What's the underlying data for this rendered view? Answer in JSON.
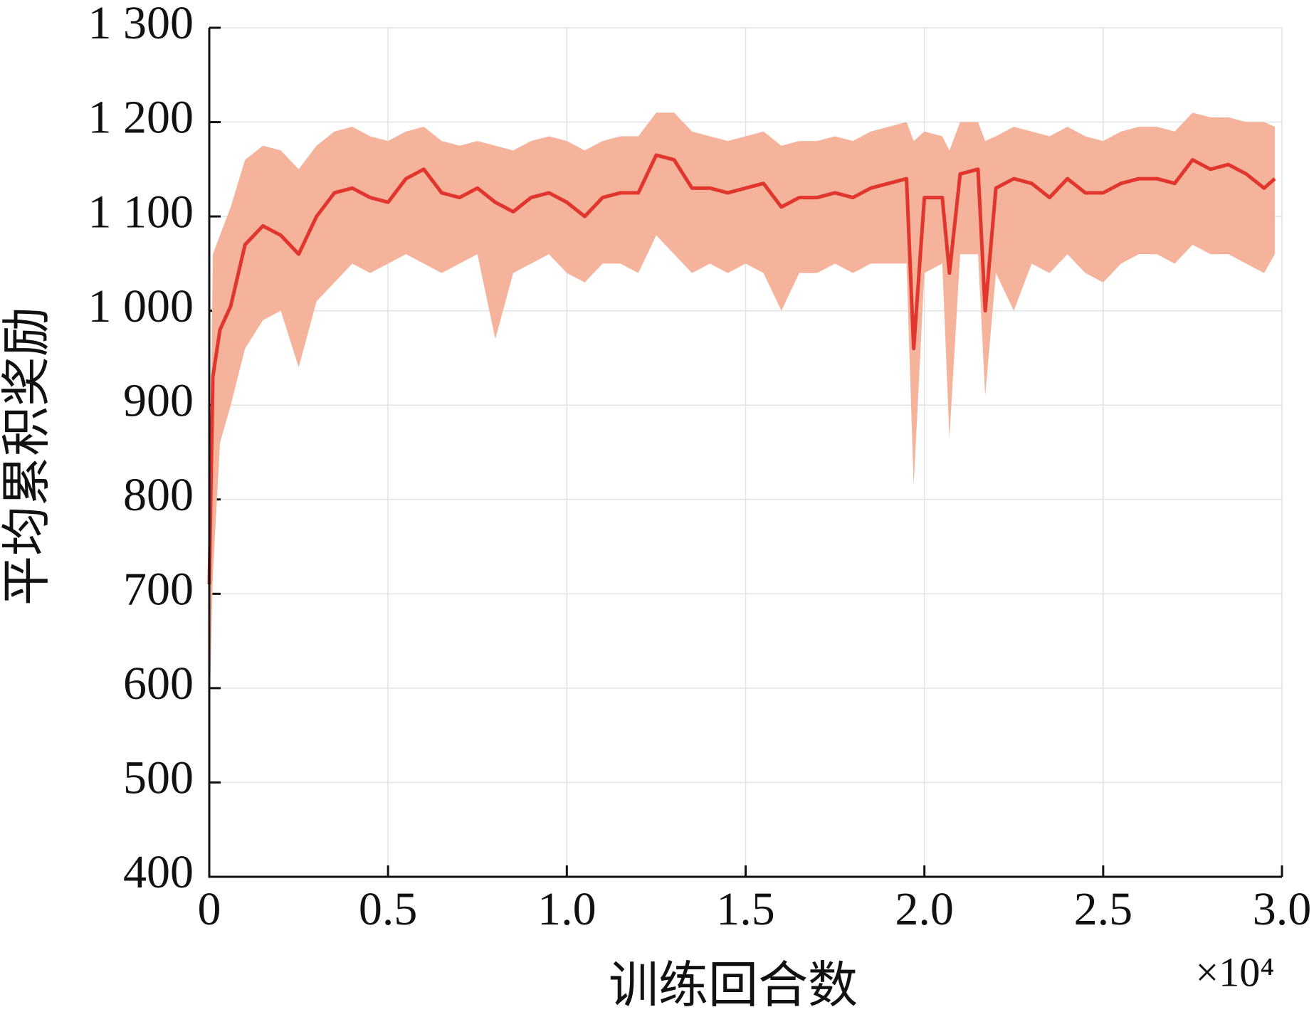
{
  "chart_data": {
    "type": "line",
    "xlabel": "训练回合数",
    "ylabel": "平均累积奖励",
    "x_multiplier": "×10⁴",
    "x": [
      0,
      0.01,
      0.03,
      0.06,
      0.1,
      0.15,
      0.2,
      0.25,
      0.3,
      0.35,
      0.4,
      0.45,
      0.5,
      0.55,
      0.6,
      0.65,
      0.7,
      0.75,
      0.8,
      0.85,
      0.9,
      0.95,
      1.0,
      1.05,
      1.1,
      1.15,
      1.2,
      1.25,
      1.3,
      1.35,
      1.4,
      1.45,
      1.5,
      1.55,
      1.6,
      1.65,
      1.7,
      1.75,
      1.8,
      1.85,
      1.9,
      1.95,
      1.97,
      2.0,
      2.05,
      2.07,
      2.1,
      2.15,
      2.17,
      2.2,
      2.25,
      2.3,
      2.35,
      2.4,
      2.45,
      2.5,
      2.55,
      2.6,
      2.65,
      2.7,
      2.75,
      2.8,
      2.85,
      2.9,
      2.95,
      2.98
    ],
    "series": [
      {
        "color": "#e1362e",
        "band_color": "#f6b39b",
        "values": [
          710,
          930,
          980,
          1005,
          1070,
          1090,
          1080,
          1060,
          1100,
          1125,
          1130,
          1120,
          1115,
          1140,
          1150,
          1125,
          1120,
          1130,
          1115,
          1105,
          1120,
          1125,
          1115,
          1100,
          1120,
          1125,
          1125,
          1165,
          1160,
          1130,
          1130,
          1125,
          1130,
          1135,
          1110,
          1120,
          1120,
          1125,
          1120,
          1130,
          1135,
          1140,
          960,
          1120,
          1120,
          1040,
          1145,
          1150,
          1000,
          1130,
          1140,
          1135,
          1120,
          1140,
          1125,
          1125,
          1135,
          1140,
          1140,
          1135,
          1160,
          1150,
          1155,
          1145,
          1130,
          1140
        ],
        "upper": [
          760,
          1060,
          1080,
          1110,
          1160,
          1175,
          1170,
          1150,
          1175,
          1190,
          1195,
          1185,
          1180,
          1190,
          1195,
          1180,
          1175,
          1180,
          1175,
          1170,
          1180,
          1185,
          1180,
          1170,
          1180,
          1185,
          1185,
          1210,
          1210,
          1190,
          1185,
          1180,
          1185,
          1190,
          1175,
          1180,
          1180,
          1185,
          1180,
          1190,
          1195,
          1200,
          1180,
          1190,
          1185,
          1170,
          1200,
          1200,
          1180,
          1185,
          1195,
          1190,
          1185,
          1195,
          1185,
          1180,
          1190,
          1195,
          1195,
          1190,
          1210,
          1205,
          1205,
          1200,
          1200,
          1195
        ],
        "lower": [
          560,
          720,
          860,
          900,
          960,
          990,
          1000,
          940,
          1010,
          1030,
          1050,
          1040,
          1050,
          1060,
          1050,
          1040,
          1050,
          1060,
          970,
          1040,
          1050,
          1060,
          1040,
          1030,
          1050,
          1050,
          1040,
          1080,
          1060,
          1040,
          1050,
          1040,
          1050,
          1040,
          1000,
          1040,
          1040,
          1050,
          1040,
          1050,
          1050,
          1050,
          815,
          1040,
          1050,
          865,
          1060,
          1060,
          910,
          1040,
          1000,
          1050,
          1040,
          1060,
          1040,
          1030,
          1050,
          1060,
          1060,
          1050,
          1070,
          1060,
          1060,
          1050,
          1040,
          1060
        ]
      }
    ],
    "xlim": [
      0,
      3
    ],
    "ylim": [
      400,
      1300
    ],
    "xticks": [
      0,
      0.5,
      {
        "value": 1,
        "label": "1.0"
      },
      1.5,
      {
        "value": 2,
        "label": "2.0"
      },
      2.5,
      {
        "value": 3,
        "label": "3.0"
      }
    ],
    "yticks": [
      400,
      500,
      600,
      700,
      800,
      900,
      {
        "value": 1000,
        "label": "1 000"
      },
      {
        "value": 1100,
        "label": "1 100"
      },
      {
        "value": 1200,
        "label": "1 200"
      },
      {
        "value": 1300,
        "label": "1 300"
      }
    ],
    "grid": true
  }
}
